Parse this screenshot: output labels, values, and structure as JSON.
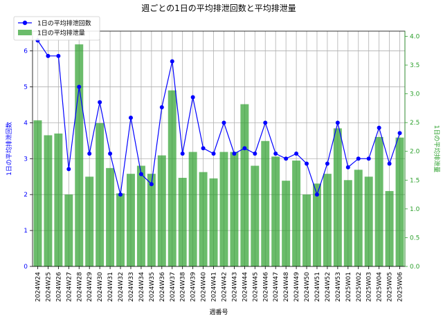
{
  "chart_data": {
    "type": "bar+line",
    "title": "週ごとの1日の平均排泄回数と平均排泄量",
    "xlabel": "週番号",
    "ylabel_left": "1日の平均排泄回数",
    "ylabel_right": "1日の平均排泄量",
    "categories": [
      "2024W24",
      "2024W25",
      "2024W26",
      "2024W27",
      "2024W28",
      "2024W29",
      "2024W30",
      "2024W31",
      "2024W32",
      "2024W33",
      "2024W34",
      "2024W35",
      "2024W36",
      "2024W37",
      "2024W38",
      "2024W39",
      "2024W40",
      "2024W41",
      "2024W42",
      "2024W43",
      "2024W44",
      "2024W45",
      "2024W46",
      "2024W47",
      "2024W48",
      "2024W49",
      "2024W50",
      "2024W51",
      "2024W52",
      "2024W53",
      "2025W01",
      "2025W02",
      "2025W03",
      "2025W04",
      "2025W05",
      "2025W06"
    ],
    "series": [
      {
        "name": "1日の平均排泄回数",
        "type": "line",
        "axis": "left",
        "color": "#0000ff",
        "values": [
          6.29,
          5.86,
          5.86,
          2.71,
          5.0,
          3.14,
          4.57,
          3.14,
          2.0,
          4.14,
          2.57,
          2.29,
          4.43,
          5.71,
          3.14,
          4.71,
          3.29,
          3.14,
          4.0,
          3.14,
          3.29,
          3.14,
          4.0,
          3.14,
          3.0,
          3.14,
          2.86,
          2.0,
          2.86,
          4.0,
          2.76,
          3.0,
          3.0,
          3.86,
          2.86,
          3.71
        ]
      },
      {
        "name": "1日の平均排泄量",
        "type": "bar",
        "axis": "right",
        "color": "#2ca02c",
        "values": [
          2.54,
          2.28,
          2.31,
          1.25,
          3.86,
          1.56,
          2.49,
          1.71,
          1.27,
          1.61,
          1.75,
          1.61,
          1.93,
          3.06,
          1.54,
          1.99,
          1.64,
          1.53,
          1.99,
          1.99,
          2.82,
          1.75,
          2.18,
          1.91,
          1.49,
          1.84,
          1.25,
          1.44,
          1.61,
          2.4,
          1.5,
          1.68,
          1.56,
          2.25,
          1.31,
          2.24
        ]
      }
    ],
    "ylim_left": [
      0,
      6.55
    ],
    "yticks_left": [
      0,
      1,
      2,
      3,
      4,
      5,
      6
    ],
    "ylim_right": [
      0,
      4.09
    ],
    "yticks_right": [
      "0.0",
      "0.5",
      "1.0",
      "1.5",
      "2.0",
      "2.5",
      "3.0",
      "3.5",
      "4.0"
    ],
    "grid": true,
    "legend_position": "top-left"
  }
}
